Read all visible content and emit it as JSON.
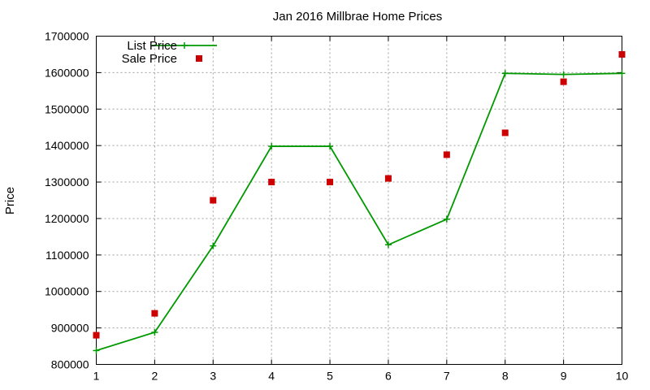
{
  "chart_data": {
    "type": "line",
    "title": "Jan 2016 Millbrae Home Prices",
    "xlabel": "",
    "ylabel": "Price",
    "x": [
      1,
      2,
      3,
      4,
      5,
      6,
      7,
      8,
      9,
      10
    ],
    "xlim": [
      1,
      10
    ],
    "ylim": [
      800000,
      1700000
    ],
    "x_ticks": [
      "1",
      "2",
      "3",
      "4",
      "5",
      "6",
      "7",
      "8",
      "9",
      "10"
    ],
    "y_ticks": [
      "800000",
      "900000",
      "1000000",
      "1100000",
      "1200000",
      "1300000",
      "1400000",
      "1500000",
      "1600000",
      "1700000"
    ],
    "grid": true,
    "legend_position": "top-left",
    "series": [
      {
        "name": "List Price",
        "style": "line-with-plus-markers",
        "color": "#009900",
        "values": [
          838000,
          888000,
          1125000,
          1398000,
          1398000,
          1128000,
          1198000,
          1598000,
          1595000,
          1598000
        ]
      },
      {
        "name": "Sale Price",
        "style": "square-markers",
        "color": "#cc0000",
        "values": [
          880000,
          940000,
          1250000,
          1300000,
          1300000,
          1310000,
          1375000,
          1435000,
          1575000,
          1650000
        ]
      }
    ]
  }
}
